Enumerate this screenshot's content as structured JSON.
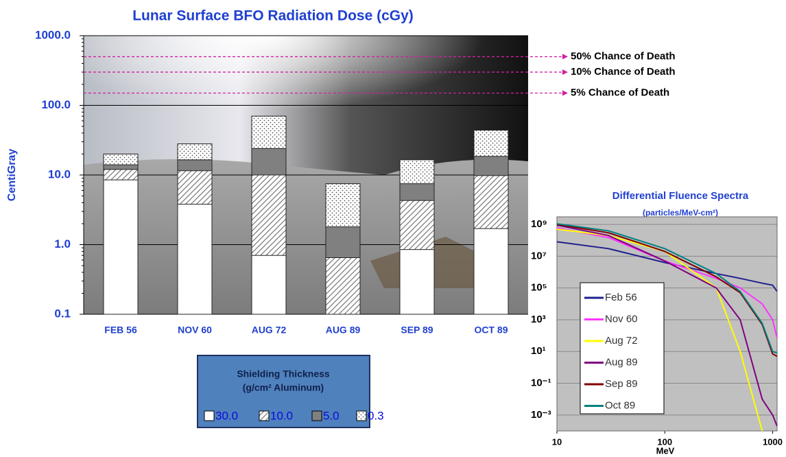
{
  "chart_data": [
    {
      "type": "bar",
      "title": "Lunar Surface BFO Radiation Dose (cGy)",
      "ylabel": "CentiGray",
      "log_y": true,
      "overlay": true,
      "ylim": [
        0.1,
        1000
      ],
      "yticks": [
        {
          "value": 1000,
          "label": "1000.0"
        },
        {
          "value": 100,
          "label": "100.0"
        },
        {
          "value": 10,
          "label": "10.0"
        },
        {
          "value": 1,
          "label": "1.0"
        },
        0.1
      ],
      "grid": true,
      "categories": [
        "FEB 56",
        "NOV 60",
        "AUG 72",
        "AUG 89",
        "SEP 89",
        "OCT 89"
      ],
      "series": [
        {
          "name": "30.0",
          "color": "#ffffff",
          "pattern": "solid",
          "values": [
            8.5,
            3.8,
            0.7,
            null,
            0.85,
            1.7
          ]
        },
        {
          "name": "10.0",
          "color": "#ffffff",
          "pattern": "diagonal",
          "values": [
            12,
            11.5,
            10,
            0.65,
            4.3,
            9.8
          ]
        },
        {
          "name": "5.0",
          "color": "#808080",
          "pattern": "solid",
          "values": [
            14,
            16.5,
            24,
            1.8,
            7.5,
            18.5
          ]
        },
        {
          "name": "0.3",
          "color": "#ffffff",
          "pattern": "dots",
          "values": [
            20,
            28,
            70,
            7.5,
            16.5,
            44
          ]
        }
      ],
      "legend_title": [
        "Shielding Thickness",
        "(g/cm² Aluminum)"
      ],
      "annotations": [
        {
          "text": "50% Chance of Death",
          "value": 500
        },
        {
          "text": "10% Chance of Death",
          "value": 300
        },
        {
          "text": "5% Chance of Death",
          "value": 150
        }
      ]
    },
    {
      "type": "line",
      "title": "Differential Fluence Spectra",
      "subtitle": "(particles/MeV-cm²)",
      "xlabel": "MeV",
      "log_x": true,
      "log_y": true,
      "xlim": [
        10,
        1100
      ],
      "ylim": [
        0.0001,
        3000000000
      ],
      "xticks": [
        10,
        100,
        1000
      ],
      "yticks": [
        {
          "value": 1000000000,
          "label": "10⁹"
        },
        {
          "value": 10000000,
          "label": "10⁷"
        },
        {
          "value": 100000,
          "label": "10⁵"
        },
        {
          "value": 1000,
          "label": "10³"
        },
        {
          "value": 10,
          "label": "10¹"
        },
        {
          "value": 0.1,
          "label": "10⁻¹"
        },
        {
          "value": 0.001,
          "label": "10⁻³"
        }
      ],
      "grid": true,
      "x": [
        10,
        30,
        100,
        300,
        500,
        800,
        1000,
        1100
      ],
      "series": [
        {
          "name": "Feb 56",
          "color": "#1f1f8f",
          "values": [
            80000000,
            30000000,
            4000000,
            800000,
            400000,
            200000,
            150000,
            60000
          ]
        },
        {
          "name": "Nov 60",
          "color": "#ff33ff",
          "values": [
            600000000,
            150000000,
            5000000,
            400000,
            100000,
            10000,
            1000,
            70
          ]
        },
        {
          "name": "Aug 72",
          "color": "#ffff00",
          "values": [
            500000000,
            200000000,
            20000000,
            100000,
            10,
            0.0001,
            null,
            null
          ]
        },
        {
          "name": "Aug 89",
          "color": "#800080",
          "values": [
            900000000,
            200000000,
            5000000,
            100000,
            1000,
            0.01,
            0.001,
            0.0002
          ]
        },
        {
          "name": "Sep 89",
          "color": "#800000",
          "values": [
            1000000000,
            300000000,
            20000000,
            500000,
            50000,
            500,
            7,
            5
          ]
        },
        {
          "name": "Oct 89",
          "color": "#008080",
          "values": [
            1100000000,
            400000000,
            30000000,
            800000,
            60000,
            600,
            10,
            8
          ]
        }
      ]
    }
  ]
}
